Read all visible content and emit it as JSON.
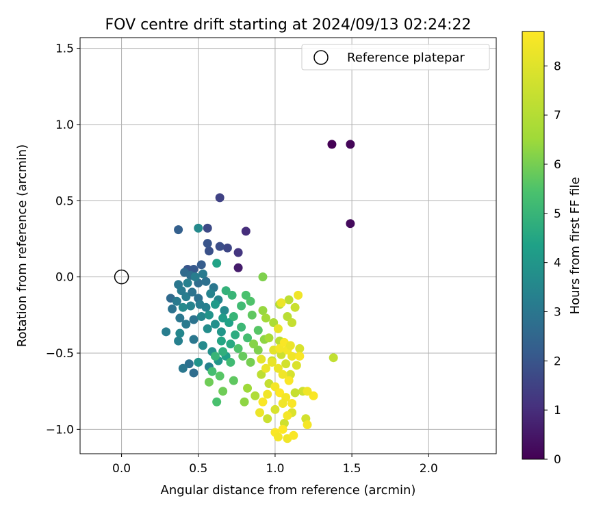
{
  "chart_data": {
    "type": "scatter",
    "title": "FOV centre drift starting at 2024/09/13 02:24:22",
    "xlabel": "Angular distance from reference (arcmin)",
    "ylabel": "Rotation from reference (arcmin)",
    "xlim": [
      -0.27,
      2.44
    ],
    "ylim": [
      -1.16,
      1.57
    ],
    "xticks": [
      0.0,
      0.5,
      1.0,
      1.5,
      2.0
    ],
    "xtick_labels": [
      "0.0",
      "0.5",
      "1.0",
      "1.5",
      "2.0"
    ],
    "yticks": [
      -1.0,
      -0.5,
      0.0,
      0.5,
      1.0,
      1.5
    ],
    "ytick_labels": [
      "−1.0",
      "−0.5",
      "0.0",
      "0.5",
      "1.0",
      "1.5"
    ],
    "grid": true,
    "legend": {
      "position": "upper right",
      "entries": [
        "Reference platepar"
      ]
    },
    "reference": {
      "x": 0.0,
      "y": 0.0
    },
    "colorbar": {
      "label": "Hours from first FF file",
      "min": 0,
      "max": 8.7,
      "ticks": [
        0,
        1,
        2,
        3,
        4,
        5,
        6,
        7,
        8
      ],
      "tick_labels": [
        "0",
        "1",
        "2",
        "3",
        "4",
        "5",
        "6",
        "7",
        "8"
      ],
      "colormap": "viridis"
    },
    "points": [
      [
        1.37,
        0.87,
        0.0
      ],
      [
        1.49,
        0.87,
        0.1
      ],
      [
        1.49,
        0.35,
        0.2
      ],
      [
        0.76,
        0.06,
        0.6
      ],
      [
        0.81,
        0.3,
        1.0
      ],
      [
        0.76,
        0.16,
        1.2
      ],
      [
        0.64,
        0.52,
        1.5
      ],
      [
        0.56,
        0.32,
        1.7
      ],
      [
        0.69,
        0.19,
        1.6
      ],
      [
        0.64,
        0.2,
        1.8
      ],
      [
        0.57,
        0.17,
        1.9
      ],
      [
        0.56,
        0.22,
        2.0
      ],
      [
        0.43,
        0.05,
        2.0
      ],
      [
        0.47,
        0.05,
        2.1
      ],
      [
        0.52,
        0.08,
        2.2
      ],
      [
        0.37,
        0.31,
        2.3
      ],
      [
        0.5,
        0.32,
        3.6
      ],
      [
        0.62,
        0.09,
        4.4
      ],
      [
        0.41,
        0.03,
        2.6
      ],
      [
        0.45,
        0.01,
        2.7
      ],
      [
        0.5,
        -0.04,
        2.7
      ],
      [
        0.55,
        -0.03,
        2.8
      ],
      [
        0.6,
        -0.07,
        3.0
      ],
      [
        0.37,
        -0.05,
        3.0
      ],
      [
        0.32,
        -0.14,
        2.6
      ],
      [
        0.36,
        -0.16,
        3.1
      ],
      [
        0.42,
        -0.13,
        3.2
      ],
      [
        0.46,
        -0.1,
        2.9
      ],
      [
        0.5,
        -0.14,
        2.8
      ],
      [
        0.55,
        -0.2,
        3.3
      ],
      [
        0.58,
        -0.11,
        3.4
      ],
      [
        0.63,
        -0.15,
        3.5
      ],
      [
        0.67,
        -0.22,
        3.6
      ],
      [
        0.33,
        -0.21,
        2.9
      ],
      [
        0.38,
        -0.27,
        3.0
      ],
      [
        0.42,
        -0.31,
        3.1
      ],
      [
        0.47,
        -0.28,
        2.9
      ],
      [
        0.52,
        -0.26,
        3.5
      ],
      [
        0.56,
        -0.34,
        3.7
      ],
      [
        0.61,
        -0.31,
        3.8
      ],
      [
        0.65,
        -0.36,
        4.0
      ],
      [
        0.29,
        -0.36,
        3.2
      ],
      [
        0.37,
        -0.42,
        3.3
      ],
      [
        0.47,
        -0.41,
        3.0
      ],
      [
        0.53,
        -0.45,
        3.6
      ],
      [
        0.59,
        -0.49,
        3.8
      ],
      [
        0.44,
        -0.57,
        2.8
      ],
      [
        0.4,
        -0.6,
        3.0
      ],
      [
        0.47,
        -0.63,
        2.7
      ],
      [
        0.57,
        -0.59,
        3.4
      ],
      [
        0.63,
        -0.55,
        4.0
      ],
      [
        0.68,
        -0.52,
        4.3
      ],
      [
        0.5,
        -0.56,
        3.9
      ],
      [
        0.38,
        -0.37,
        3.5
      ],
      [
        0.53,
        0.02,
        3.1
      ],
      [
        0.48,
        0.0,
        3.2
      ],
      [
        0.43,
        -0.04,
        3.3
      ],
      [
        0.39,
        -0.09,
        3.1
      ],
      [
        0.45,
        -0.19,
        3.4
      ],
      [
        0.4,
        -0.2,
        3.6
      ],
      [
        0.51,
        -0.18,
        3.2
      ],
      [
        0.57,
        -0.25,
        3.9
      ],
      [
        0.61,
        -0.18,
        4.1
      ],
      [
        0.66,
        -0.27,
        4.2
      ],
      [
        0.7,
        -0.3,
        4.4
      ],
      [
        0.65,
        -0.42,
        4.5
      ],
      [
        0.71,
        -0.44,
        4.6
      ],
      [
        0.74,
        -0.38,
        4.7
      ],
      [
        0.68,
        -0.09,
        4.9
      ],
      [
        0.72,
        -0.12,
        5.0
      ],
      [
        0.78,
        -0.19,
        5.2
      ],
      [
        0.81,
        -0.12,
        5.4
      ],
      [
        0.84,
        -0.16,
        5.5
      ],
      [
        0.73,
        -0.26,
        5.0
      ],
      [
        0.78,
        -0.33,
        5.1
      ],
      [
        0.85,
        -0.25,
        5.7
      ],
      [
        0.89,
        -0.35,
        5.6
      ],
      [
        0.82,
        -0.4,
        5.3
      ],
      [
        0.76,
        -0.47,
        5.5
      ],
      [
        0.71,
        -0.56,
        5.2
      ],
      [
        0.66,
        -0.49,
        4.8
      ],
      [
        0.61,
        -0.52,
        5.0
      ],
      [
        0.59,
        -0.62,
        5.3
      ],
      [
        0.64,
        -0.65,
        5.6
      ],
      [
        0.66,
        -0.75,
        5.9
      ],
      [
        0.57,
        -0.69,
        5.9
      ],
      [
        0.62,
        -0.82,
        5.4
      ],
      [
        0.73,
        -0.68,
        5.7
      ],
      [
        0.79,
        -0.52,
        5.8
      ],
      [
        0.84,
        -0.56,
        6.0
      ],
      [
        0.89,
        -0.48,
        6.1
      ],
      [
        0.86,
        -0.44,
        6.2
      ],
      [
        0.93,
        -0.41,
        6.3
      ],
      [
        0.92,
        0.0,
        6.1
      ],
      [
        0.92,
        -0.22,
        6.4
      ],
      [
        0.94,
        -0.27,
        6.6
      ],
      [
        0.99,
        -0.3,
        6.8
      ],
      [
        1.03,
        -0.18,
        7.0
      ],
      [
        1.09,
        -0.15,
        7.2
      ],
      [
        1.08,
        -0.26,
        7.1
      ],
      [
        1.11,
        -0.3,
        7.4
      ],
      [
        0.96,
        -0.4,
        6.7
      ],
      [
        1.03,
        -0.42,
        7.1
      ],
      [
        1.13,
        -0.2,
        7.5
      ],
      [
        0.8,
        -0.82,
        6.3
      ],
      [
        0.82,
        -0.73,
        6.5
      ],
      [
        0.87,
        -0.78,
        6.9
      ],
      [
        0.91,
        -0.64,
        7.2
      ],
      [
        0.96,
        -0.7,
        7.4
      ],
      [
        0.98,
        -0.55,
        7.5
      ],
      [
        1.04,
        -0.51,
        7.6
      ],
      [
        1.07,
        -0.57,
        7.7
      ],
      [
        1.1,
        -0.64,
        7.8
      ],
      [
        1.16,
        -0.47,
        7.8
      ],
      [
        1.14,
        -0.58,
        7.9
      ],
      [
        1.18,
        -0.75,
        7.6
      ],
      [
        1.13,
        -0.76,
        7.4
      ],
      [
        1.2,
        -0.93,
        7.7
      ],
      [
        0.95,
        -0.93,
        7.5
      ],
      [
        1.0,
        -0.87,
        7.8
      ],
      [
        1.06,
        -0.96,
        7.6
      ],
      [
        1.11,
        -0.89,
        7.9
      ],
      [
        1.38,
        -0.53,
        7.3
      ],
      [
        1.15,
        -0.12,
        8.4
      ],
      [
        1.04,
        -0.17,
        8.3
      ],
      [
        1.02,
        -0.34,
        8.2
      ],
      [
        0.99,
        -0.48,
        8.1
      ],
      [
        1.03,
        -0.47,
        8.5
      ],
      [
        1.06,
        -0.43,
        8.6
      ],
      [
        1.08,
        -0.48,
        8.5
      ],
      [
        1.11,
        -0.52,
        8.4
      ],
      [
        1.16,
        -0.52,
        8.6
      ],
      [
        1.02,
        -0.6,
        8.3
      ],
      [
        1.05,
        -0.64,
        8.4
      ],
      [
        1.09,
        -0.68,
        8.6
      ],
      [
        1.0,
        -0.72,
        8.5
      ],
      [
        0.95,
        -0.77,
        8.4
      ],
      [
        0.92,
        -0.82,
        8.6
      ],
      [
        1.03,
        -0.76,
        8.7
      ],
      [
        1.07,
        -0.79,
        8.5
      ],
      [
        1.11,
        -0.83,
        8.6
      ],
      [
        1.05,
        -0.83,
        8.4
      ],
      [
        0.9,
        -0.89,
        8.3
      ],
      [
        1.0,
        -1.02,
        8.6
      ],
      [
        1.02,
        -1.05,
        8.5
      ],
      [
        1.05,
        -1.0,
        8.7
      ],
      [
        1.08,
        -1.06,
        8.4
      ],
      [
        1.12,
        -1.04,
        8.6
      ],
      [
        1.21,
        -0.97,
        8.5
      ],
      [
        1.25,
        -0.78,
        8.6
      ],
      [
        1.21,
        -0.75,
        8.4
      ],
      [
        1.08,
        -0.91,
        8.5
      ],
      [
        0.98,
        -0.56,
        8.2
      ],
      [
        0.94,
        -0.6,
        8.3
      ],
      [
        0.91,
        -0.54,
        8.1
      ],
      [
        1.1,
        -0.45,
        8.3
      ]
    ]
  }
}
